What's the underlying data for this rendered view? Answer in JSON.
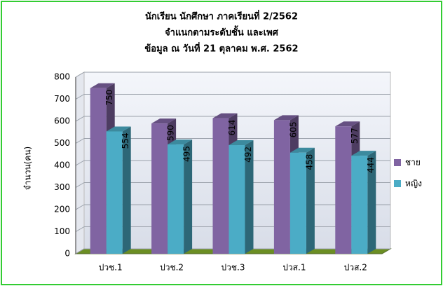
{
  "chart_data": {
    "type": "bar3d",
    "title": [
      "นักเรียน นักศึกษา ภาคเรียนที่ 2/2562",
      "จำแนกตามระดับชั้น และเพศ",
      "ข้อมูล ณ วันที่  21  ตุลาคม  พ.ศ. 2562"
    ],
    "y_label": "จำนวน(คน)",
    "categories": [
      "ปวช.1",
      "ปวช.2",
      "ปวช.3",
      "ปวส.1",
      "ปวส.2"
    ],
    "series": [
      {
        "name": "ชาย",
        "color": "#8064a2",
        "label_color": "#e02020",
        "values": [
          750,
          590,
          614,
          605,
          577
        ]
      },
      {
        "name": "หญิง",
        "color": "#4bacc6",
        "label_color": "#1f3b70",
        "values": [
          554,
          495,
          492,
          458,
          444
        ]
      }
    ],
    "ylim": [
      0,
      800
    ],
    "yticks": [
      0,
      100,
      200,
      300,
      400,
      500,
      600,
      700,
      800
    ],
    "grid": true,
    "legend": "right"
  }
}
